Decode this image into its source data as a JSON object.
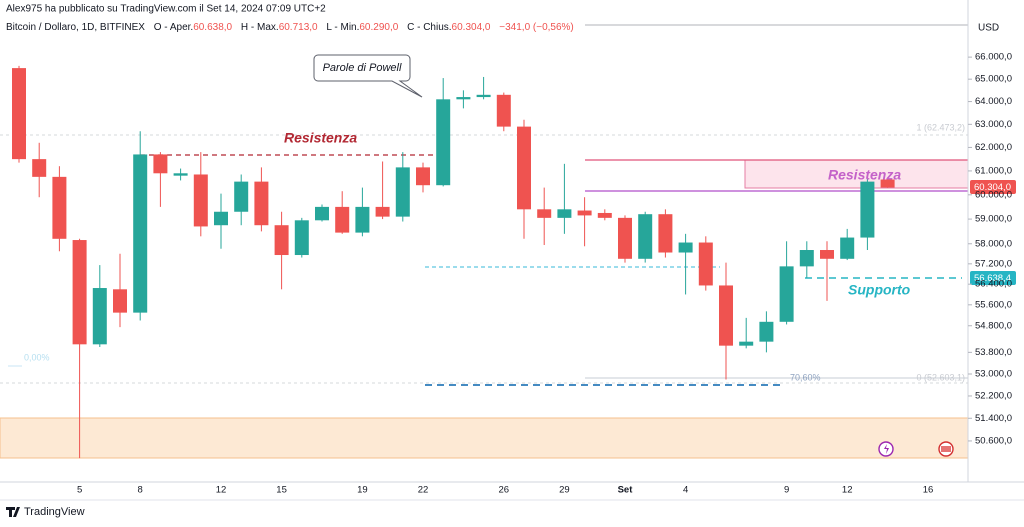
{
  "header": {
    "author_line": "Alex975 ha pubblicato su TradingView.com il Set 14, 2024 07:09 UTC+2"
  },
  "chart_data": {
    "type": "candlestick",
    "legend": {
      "symbol": "Bitcoin / Dollaro, 1D, BITFINEX",
      "ohlc": [
        {
          "label": "O - Aper.",
          "value": "60.638,0"
        },
        {
          "label": "H - Max.",
          "value": "60.713,0"
        },
        {
          "label": "L - Min.",
          "value": "60.290,0"
        },
        {
          "label": "C - Chius.",
          "value": "60.304,0"
        }
      ],
      "change": "−341,0 (−0,56%)"
    },
    "y_axis_title": "USD",
    "categories": [
      null,
      null,
      null,
      "5",
      null,
      null,
      "8",
      null,
      null,
      null,
      "12",
      null,
      null,
      "15",
      null,
      null,
      null,
      "19",
      null,
      null,
      "22",
      null,
      null,
      null,
      "26",
      null,
      null,
      "29",
      null,
      null,
      "Set",
      null,
      null,
      "4",
      null,
      null,
      null,
      null,
      "9",
      null,
      null,
      "12",
      null,
      null,
      null,
      "16"
    ],
    "open": [
      65500,
      61500,
      60750,
      58150,
      54100,
      56200,
      55300,
      61700,
      60800,
      60850,
      58750,
      59300,
      60550,
      58750,
      57550,
      58950,
      59500,
      58450,
      59500,
      59100,
      61150,
      60400,
      64100,
      64200,
      64300,
      62900,
      59400,
      59050,
      59350,
      59250,
      59050,
      57400,
      59200,
      57650,
      58050,
      56350,
      54050,
      54200,
      54950,
      57100,
      57750,
      57400,
      58250,
      60638,
      null,
      null
    ],
    "high": [
      65600,
      62200,
      61200,
      58200,
      57150,
      57600,
      62700,
      61800,
      61100,
      61800,
      60050,
      60850,
      61150,
      59300,
      59050,
      59600,
      60150,
      60300,
      61400,
      61800,
      61350,
      65050,
      64500,
      65100,
      64400,
      63200,
      60300,
      61300,
      59900,
      59400,
      59150,
      59300,
      59400,
      58400,
      58300,
      57250,
      55100,
      55350,
      58100,
      58100,
      58100,
      58600,
      60750,
      60713,
      null,
      null
    ],
    "low": [
      61350,
      59900,
      57700,
      50000,
      54000,
      54750,
      55000,
      59500,
      60600,
      58300,
      57800,
      58750,
      58500,
      56200,
      57450,
      58900,
      58400,
      58300,
      59000,
      58900,
      60100,
      60350,
      63700,
      64100,
      62700,
      58200,
      57950,
      58400,
      57900,
      58950,
      57250,
      57250,
      57450,
      56000,
      56150,
      52800,
      53950,
      53800,
      54850,
      56650,
      55750,
      57350,
      57750,
      60290,
      null,
      null
    ],
    "close": [
      61500,
      60750,
      58200,
      54100,
      56250,
      55300,
      61700,
      60900,
      60900,
      58700,
      59300,
      60550,
      58750,
      57550,
      58950,
      59500,
      58450,
      59500,
      59100,
      61150,
      60400,
      64100,
      64200,
      64300,
      62900,
      59400,
      59050,
      59400,
      59150,
      59050,
      57400,
      59200,
      57650,
      58050,
      56350,
      54050,
      54200,
      54950,
      57100,
      57750,
      57400,
      58250,
      60550,
      60304,
      null,
      null
    ],
    "up_color": "#26a69a",
    "down_color": "#ef5350",
    "log_scale": true,
    "ylim": [
      49250,
      68000
    ],
    "yticks": [
      {
        "value": 66000,
        "label": "66.000,0"
      },
      {
        "value": 65000,
        "label": "65.000,0"
      },
      {
        "value": 64000,
        "label": "64.000,0"
      },
      {
        "value": 63000,
        "label": "63.000,0"
      },
      {
        "value": 62000,
        "label": "62.000,0"
      },
      {
        "value": 61000,
        "label": "61.000,0"
      },
      {
        "value": 60000,
        "label": "60.000,0"
      },
      {
        "value": 59000,
        "label": "59.000,0"
      },
      {
        "value": 58000,
        "label": "58.000,0"
      },
      {
        "value": 57200,
        "label": "57.200,0"
      },
      {
        "value": 56400,
        "label": "56.400,0"
      },
      {
        "value": 55600,
        "label": "55.600,0"
      },
      {
        "value": 54800,
        "label": "54.800,0"
      },
      {
        "value": 53800,
        "label": "53.800,0"
      },
      {
        "value": 53000,
        "label": "53.000,0"
      },
      {
        "value": 52200,
        "label": "52.200,0"
      },
      {
        "value": 51400,
        "label": "51.400,0"
      },
      {
        "value": 50600,
        "label": "50.600,0"
      }
    ],
    "annotations": {
      "callout": "Parole di Powell",
      "resistance_left": "Resistenza",
      "resistance_right": "Resistenza",
      "support": "Supporto",
      "fib_left": "0,00%",
      "fib_1": "1 (62.473,2)",
      "fib_70": "70,60%",
      "fib_0": "0 (52.603,1)",
      "last_price": "60.304,0",
      "support_price": "56.638,4"
    }
  },
  "footer": {
    "brand": "TradingView"
  }
}
